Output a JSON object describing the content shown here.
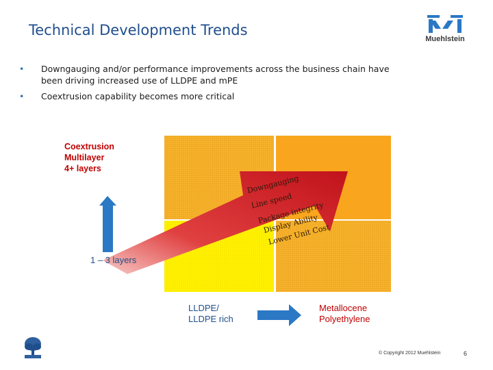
{
  "slide": {
    "title": "Technical Development Trends",
    "brand_name": "Muehlstein",
    "bullets": [
      "Downgauging and/or performance improvements across the business chain have been driving increased use of LLDPE and mPE",
      "Coextrusion capability becomes more critical"
    ]
  },
  "diagram": {
    "y_axis_top_label": [
      "Coextrusion",
      "Multilayer",
      "4+ layers"
    ],
    "y_axis_bottom_label": "1 – 3 layers",
    "x_axis_left_label": [
      "LLDPE/",
      "LLDPE rich"
    ],
    "x_axis_right_label": [
      "Metallocene",
      "Polyethylene"
    ],
    "arrow_text_lines": [
      "Downgauging",
      "Line speed",
      "Package integrity",
      "Display Ability",
      "Lower Unit Cost"
    ],
    "colors": {
      "quad_top_left": "#f7b32b",
      "quad_top_right": "#f9a61e",
      "quad_bottom_left": "#fff200",
      "quad_bottom_right": "#f7b32b",
      "diagonal_arrow": "#d9252a",
      "axis_arrow": "#2b78c5"
    }
  },
  "footer": {
    "copyright": "© Copyright 2012 Muehlstein",
    "page_number": "6"
  },
  "colors": {
    "title": "#1f4e8c",
    "accent_red": "#c00000",
    "bullet": "#2e75b6"
  },
  "icons": {
    "brand_logo": "muehlstein-logo",
    "corner_logo": "tree-logo-icon"
  }
}
